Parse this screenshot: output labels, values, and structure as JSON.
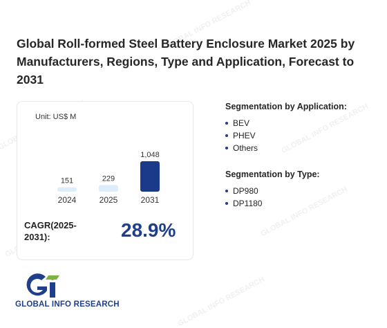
{
  "title": "Global Roll-formed Steel Battery Enclosure Market 2025 by Manufacturers, Regions, Type and Application, Forecast to 2031",
  "chart_data": {
    "type": "bar",
    "unit_label": "Unit: US$ M",
    "categories": [
      "2024",
      "2025",
      "2031"
    ],
    "values": [
      151,
      229,
      1048
    ],
    "value_labels": [
      "151",
      "229",
      "1,048"
    ],
    "colors": [
      "#ddeefb",
      "#ddeefb",
      "#1c3a8a"
    ],
    "ylim": [
      0,
      1048
    ]
  },
  "cagr": {
    "label": "CAGR(2025-2031):",
    "value": "28.9%"
  },
  "segmentation_application": {
    "heading": "Segmentation by Application:",
    "items": [
      "BEV",
      "PHEV",
      "Others"
    ]
  },
  "segmentation_type": {
    "heading": "Segmentation by Type:",
    "items": [
      "DP980",
      "DP1180"
    ]
  },
  "logo": {
    "text": "GLOBAL INFO RESEARCH",
    "mark": "Gi",
    "colors": [
      "#1f3f8c",
      "#7cb342"
    ]
  },
  "watermark": {
    "text": "GLOBAL INFO RESEARCH"
  }
}
